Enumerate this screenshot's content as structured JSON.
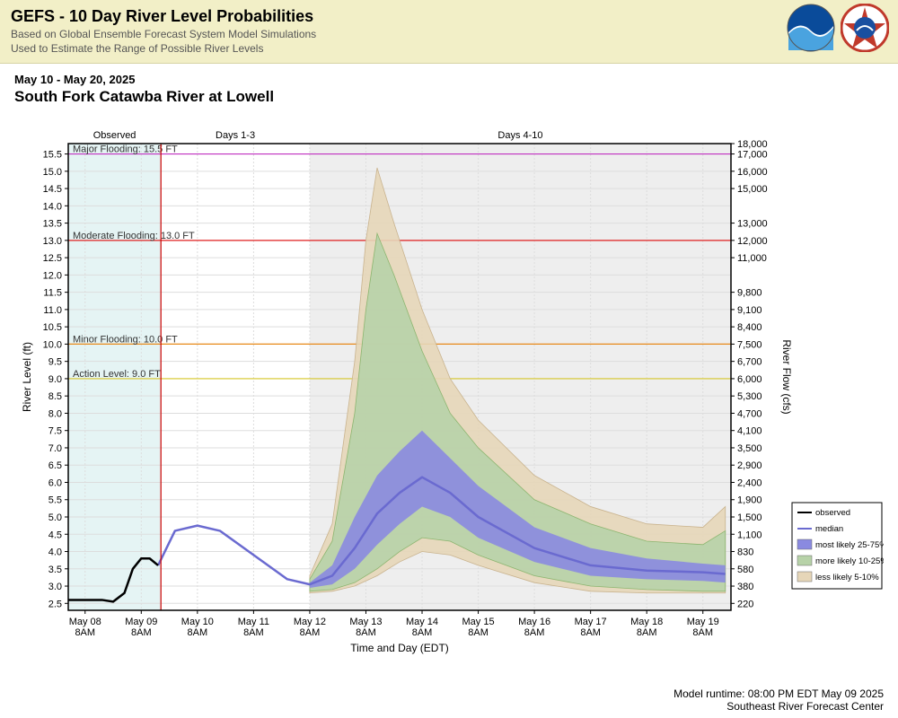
{
  "header": {
    "title": "GEFS - 10 Day River Level Probabilities",
    "sub1": "Based on Global Ensemble Forecast System Model Simulations",
    "sub2": "Used to Estimate the Range of Possible River Levels"
  },
  "subtitle": {
    "date_range": "May 10 - May 20, 2025",
    "station": "South Fork Catawba River at Lowell"
  },
  "footer": {
    "runtime": "Model runtime: 08:00 PM EDT May 09 2025",
    "center": "Southeast River Forecast Center"
  },
  "top_labels": {
    "observed": "Observed",
    "d13": "Days 1-3",
    "d410": "Days 4-10"
  },
  "axes": {
    "y_left_label": "River Level (ft)",
    "y_right_label": "River Flow (cfs)",
    "x_label": "Time and Day (EDT)",
    "y_left_ticks": [
      2.5,
      3.0,
      3.5,
      4.0,
      4.5,
      5.0,
      5.5,
      6.0,
      6.5,
      7.0,
      7.5,
      8.0,
      8.5,
      9.0,
      9.5,
      10.0,
      10.5,
      11.0,
      11.5,
      12.0,
      12.5,
      13.0,
      13.5,
      14.0,
      14.5,
      15.0,
      15.5
    ],
    "y_right_ticks": [
      {
        "v": 2.5,
        "lbl": "220"
      },
      {
        "v": 3.0,
        "lbl": "380"
      },
      {
        "v": 3.5,
        "lbl": "580"
      },
      {
        "v": 4.0,
        "lbl": "830"
      },
      {
        "v": 4.5,
        "lbl": "1,100"
      },
      {
        "v": 5.0,
        "lbl": "1,500"
      },
      {
        "v": 5.5,
        "lbl": "1,900"
      },
      {
        "v": 6.0,
        "lbl": "2,400"
      },
      {
        "v": 6.5,
        "lbl": "2,900"
      },
      {
        "v": 7.0,
        "lbl": "3,500"
      },
      {
        "v": 7.5,
        "lbl": "4,100"
      },
      {
        "v": 8.0,
        "lbl": "4,700"
      },
      {
        "v": 8.5,
        "lbl": "5,300"
      },
      {
        "v": 9.0,
        "lbl": "6,000"
      },
      {
        "v": 9.5,
        "lbl": "6,700"
      },
      {
        "v": 10.0,
        "lbl": "7,500"
      },
      {
        "v": 10.5,
        "lbl": "8,400"
      },
      {
        "v": 11.0,
        "lbl": "9,100"
      },
      {
        "v": 11.5,
        "lbl": "9,800"
      },
      {
        "v": 12.5,
        "lbl": "11,000"
      },
      {
        "v": 13.0,
        "lbl": "12,000"
      },
      {
        "v": 13.5,
        "lbl": "13,000"
      },
      {
        "v": 14.5,
        "lbl": "15,000"
      },
      {
        "v": 15.0,
        "lbl": "16,000"
      },
      {
        "v": 15.5,
        "lbl": "17,000"
      },
      {
        "v": 15.8,
        "lbl": "18,000"
      }
    ],
    "x_ticks": [
      "May 08",
      "May 09",
      "May 10",
      "May 11",
      "May 12",
      "May 13",
      "May 14",
      "May 15",
      "May 16",
      "May 17",
      "May 18",
      "May 19"
    ],
    "x_tick_sub": "8AM",
    "x_range": [
      7.7,
      19.5
    ],
    "y_range": [
      2.3,
      15.8
    ]
  },
  "regions": {
    "observed_end": 9.35,
    "d13_end": 12.0
  },
  "thresholds": [
    {
      "label": "Major Flooding: 15.5 FT",
      "value": 15.5,
      "color": "#c030c0"
    },
    {
      "label": "Moderate Flooding: 13.0 FT",
      "value": 13.0,
      "color": "#e02020"
    },
    {
      "label": "Minor Flooding: 10.0 FT",
      "value": 10.0,
      "color": "#e88a1a"
    },
    {
      "label": "Action Level: 9.0 FT",
      "value": 9.0,
      "color": "#d8c82a"
    }
  ],
  "colors": {
    "observed_bg": "#e5f4f4",
    "d410_bg": "#eeeeee",
    "grid": "#dddddd",
    "axis": "#000000",
    "now_line": "#cc0000",
    "observed": "#000000",
    "median": "#6a6ad0",
    "band_25_75": "#8a8ae0",
    "band_10_25": "#b7d2a8",
    "band_5_10": "#e6d6b8"
  },
  "legend": [
    {
      "type": "line",
      "color": "#000000",
      "width": 2,
      "label": "observed"
    },
    {
      "type": "line",
      "color": "#6a6ad0",
      "width": 2,
      "label": "median"
    },
    {
      "type": "swatch",
      "color": "#8a8ae0",
      "label": "most likely 25-75%"
    },
    {
      "type": "swatch",
      "color": "#b7d2a8",
      "label": "more likely 10-25%"
    },
    {
      "type": "swatch",
      "color": "#e6d6b8",
      "label": "less likely 5-10%"
    }
  ],
  "series": {
    "observed": [
      [
        7.7,
        2.6
      ],
      [
        8.0,
        2.6
      ],
      [
        8.3,
        2.6
      ],
      [
        8.5,
        2.55
      ],
      [
        8.7,
        2.8
      ],
      [
        8.85,
        3.5
      ],
      [
        9.0,
        3.8
      ],
      [
        9.15,
        3.8
      ],
      [
        9.3,
        3.6
      ]
    ],
    "median": [
      [
        9.3,
        3.6
      ],
      [
        9.6,
        4.6
      ],
      [
        10.0,
        4.75
      ],
      [
        10.4,
        4.6
      ],
      [
        11.0,
        3.9
      ],
      [
        11.6,
        3.2
      ],
      [
        12.0,
        3.05
      ],
      [
        12.4,
        3.3
      ],
      [
        12.8,
        4.1
      ],
      [
        13.2,
        5.1
      ],
      [
        13.6,
        5.7
      ],
      [
        14.0,
        6.15
      ],
      [
        14.5,
        5.7
      ],
      [
        15.0,
        5.0
      ],
      [
        16.0,
        4.1
      ],
      [
        17.0,
        3.6
      ],
      [
        18.0,
        3.45
      ],
      [
        19.0,
        3.4
      ],
      [
        19.4,
        3.35
      ]
    ],
    "p25": [
      [
        12.0,
        2.95
      ],
      [
        12.4,
        3.05
      ],
      [
        12.8,
        3.5
      ],
      [
        13.2,
        4.2
      ],
      [
        13.6,
        4.8
      ],
      [
        14.0,
        5.3
      ],
      [
        14.5,
        5.0
      ],
      [
        15.0,
        4.4
      ],
      [
        16.0,
        3.7
      ],
      [
        17.0,
        3.3
      ],
      [
        18.0,
        3.2
      ],
      [
        19.0,
        3.15
      ],
      [
        19.4,
        3.1
      ]
    ],
    "p75": [
      [
        12.0,
        3.1
      ],
      [
        12.4,
        3.6
      ],
      [
        12.8,
        5.0
      ],
      [
        13.2,
        6.2
      ],
      [
        13.6,
        6.9
      ],
      [
        14.0,
        7.5
      ],
      [
        14.5,
        6.7
      ],
      [
        15.0,
        5.9
      ],
      [
        16.0,
        4.7
      ],
      [
        17.0,
        4.1
      ],
      [
        18.0,
        3.8
      ],
      [
        19.0,
        3.65
      ],
      [
        19.4,
        3.6
      ]
    ],
    "p10": [
      [
        12.0,
        2.85
      ],
      [
        12.4,
        2.9
      ],
      [
        12.8,
        3.1
      ],
      [
        13.2,
        3.5
      ],
      [
        13.6,
        4.0
      ],
      [
        14.0,
        4.4
      ],
      [
        14.5,
        4.3
      ],
      [
        15.0,
        3.9
      ],
      [
        16.0,
        3.3
      ],
      [
        17.0,
        3.0
      ],
      [
        18.0,
        2.9
      ],
      [
        19.0,
        2.85
      ],
      [
        19.4,
        2.85
      ]
    ],
    "p90": [
      [
        12.0,
        3.2
      ],
      [
        12.4,
        4.3
      ],
      [
        12.8,
        8.0
      ],
      [
        13.0,
        11.0
      ],
      [
        13.2,
        13.2
      ],
      [
        13.5,
        12.0
      ],
      [
        14.0,
        9.8
      ],
      [
        14.5,
        8.0
      ],
      [
        15.0,
        7.0
      ],
      [
        16.0,
        5.5
      ],
      [
        17.0,
        4.8
      ],
      [
        18.0,
        4.3
      ],
      [
        19.0,
        4.2
      ],
      [
        19.4,
        4.6
      ]
    ],
    "p05": [
      [
        12.0,
        2.8
      ],
      [
        12.4,
        2.85
      ],
      [
        12.8,
        3.0
      ],
      [
        13.2,
        3.3
      ],
      [
        13.6,
        3.7
      ],
      [
        14.0,
        4.0
      ],
      [
        14.5,
        3.9
      ],
      [
        15.0,
        3.6
      ],
      [
        16.0,
        3.1
      ],
      [
        17.0,
        2.85
      ],
      [
        18.0,
        2.8
      ],
      [
        19.0,
        2.8
      ],
      [
        19.4,
        2.8
      ]
    ],
    "p95": [
      [
        12.0,
        3.3
      ],
      [
        12.4,
        4.8
      ],
      [
        12.8,
        9.5
      ],
      [
        13.0,
        13.0
      ],
      [
        13.2,
        15.1
      ],
      [
        13.5,
        13.5
      ],
      [
        14.0,
        11.0
      ],
      [
        14.5,
        9.0
      ],
      [
        15.0,
        7.8
      ],
      [
        16.0,
        6.2
      ],
      [
        17.0,
        5.3
      ],
      [
        18.0,
        4.8
      ],
      [
        19.0,
        4.7
      ],
      [
        19.4,
        5.3
      ]
    ]
  }
}
